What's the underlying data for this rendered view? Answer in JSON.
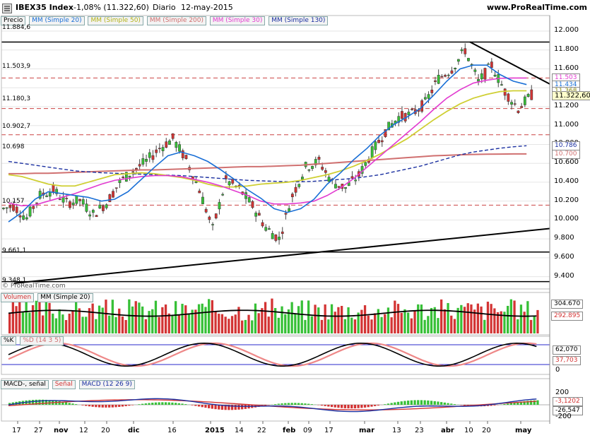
{
  "header": {
    "ticker_label": "IBEX35 Index",
    "change": "-1,08% (11.322,60)",
    "period": "Diario",
    "date": "12-may-2015",
    "site": "www.ProRealTime.com"
  },
  "price_panel": {
    "legend": [
      "Precio",
      "MM (Simple 20)",
      "MM (Simple 50)",
      "MM (Simple 200)",
      "MM (Simple 30)",
      "MM (Simple 130)"
    ],
    "legend_colors": [
      "#000000",
      "#1a6fd6",
      "#cfcf33",
      "#d07070",
      "#e23bd0",
      "#1a2fa0"
    ],
    "level_labels": [
      "11.884,6",
      "11.503,9",
      "11.180,3",
      "10.902,7",
      "10.698",
      "10.157",
      "9.661,1",
      "9.348,1"
    ],
    "watermark": "© ProRealTime.com",
    "right_axis": [
      "12.000",
      "11.800",
      "11.600",
      "11.400",
      "11.200",
      "11.000",
      "10.800",
      "10.600",
      "10.400",
      "10.200",
      "10.000",
      "9.800",
      "9.600",
      "9.400"
    ],
    "badges": [
      {
        "text": "11.503",
        "color": "#e23bd0"
      },
      {
        "text": "11.434",
        "color": "#1a6fd6"
      },
      {
        "text": "11.368",
        "color": "#cfcf33"
      },
      {
        "text": "11.322,60",
        "color": "#000000"
      },
      {
        "text": "10.786",
        "color": "#1a2fa0"
      },
      {
        "text": "10.700",
        "color": "#d07070"
      }
    ]
  },
  "volume_panel": {
    "legend": [
      "Volumen",
      "MM (Simple 20)"
    ],
    "right_labels": [
      "304.670",
      "292.895"
    ]
  },
  "stoch_panel": {
    "legend": [
      "%K",
      "%D (14 3 5)"
    ],
    "right_labels": [
      "62,070",
      "37,703",
      "0"
    ]
  },
  "macd_panel": {
    "legend": [
      "MACD-, señal",
      "Señal",
      "MACD (12 26 9)"
    ],
    "right_labels": [
      "200",
      "-3,1202",
      "-26,547",
      "-200"
    ]
  },
  "x_axis": {
    "ticks": [
      "17",
      "27",
      "nov",
      "12",
      "20",
      "dic",
      "16",
      "2015",
      "14",
      "22",
      "feb",
      "09",
      "17",
      "mar",
      "13",
      "23",
      "abr",
      "10",
      "20",
      "may"
    ]
  },
  "colors": {
    "up_candle": "#37c037",
    "down_candle": "#d33434",
    "grid": "#e6e6e6"
  },
  "chart_data": {
    "type": "candlestick",
    "ylim": [
      9300,
      12060
    ],
    "sma20": [
      9980,
      10080,
      10220,
      10300,
      10280,
      10260,
      10240,
      10200,
      10220,
      10300,
      10430,
      10560,
      10680,
      10720,
      10680,
      10620,
      10530,
      10430,
      10320,
      10230,
      10120,
      10080,
      10120,
      10220,
      10380,
      10500,
      10640,
      10760,
      10900,
      11010,
      11090,
      11180,
      11320,
      11470,
      11600,
      11640,
      11640,
      11540,
      11470,
      11434
    ],
    "sma50": [
      10480,
      10460,
      10420,
      10380,
      10360,
      10360,
      10400,
      10440,
      10480,
      10490,
      10500,
      10490,
      10470,
      10450,
      10420,
      10380,
      10350,
      10350,
      10360,
      10380,
      10390,
      10400,
      10420,
      10450,
      10480,
      10520,
      10570,
      10630,
      10700,
      10780,
      10860,
      10960,
      11060,
      11150,
      11230,
      11290,
      11330,
      11360,
      11368,
      11368
    ],
    "sma200": [
      10490,
      10490,
      10495,
      10495,
      10500,
      10505,
      10510,
      10515,
      10520,
      10525,
      10530,
      10530,
      10535,
      10540,
      10545,
      10550,
      10555,
      10560,
      10565,
      10565,
      10570,
      10575,
      10580,
      10590,
      10600,
      10610,
      10620,
      10630,
      10640,
      10650,
      10660,
      10670,
      10680,
      10685,
      10690,
      10694,
      10697,
      10698,
      10700,
      10700
    ],
    "sma30": [
      10180,
      10150,
      10160,
      10200,
      10240,
      10280,
      10330,
      10380,
      10420,
      10440,
      10460,
      10470,
      10470,
      10460,
      10430,
      10400,
      10360,
      10310,
      10260,
      10200,
      10170,
      10170,
      10180,
      10200,
      10260,
      10340,
      10440,
      10560,
      10680,
      10800,
      10920,
      11040,
      11170,
      11290,
      11380,
      11450,
      11480,
      11500,
      11503,
      11503
    ],
    "sma130": [
      10620,
      10600,
      10580,
      10560,
      10540,
      10520,
      10510,
      10500,
      10495,
      10490,
      10485,
      10480,
      10475,
      10470,
      10460,
      10450,
      10440,
      10430,
      10420,
      10415,
      10410,
      10405,
      10405,
      10410,
      10420,
      10430,
      10440,
      10460,
      10480,
      10510,
      10540,
      10570,
      10610,
      10650,
      10690,
      10720,
      10740,
      10760,
      10775,
      10786
    ],
    "closes": [
      10150,
      10020,
      10260,
      10320,
      10180,
      10210,
      10060,
      10180,
      10400,
      10520,
      10620,
      10760,
      10860,
      10640,
      10320,
      9900,
      10420,
      10330,
      10150,
      9920,
      9800,
      10260,
      10560,
      10620,
      10400,
      10340,
      10470,
      10720,
      10940,
      11090,
      11120,
      11240,
      11500,
      11600,
      11800,
      11460,
      11640,
      11360,
      11180,
      11322.6
    ]
  }
}
